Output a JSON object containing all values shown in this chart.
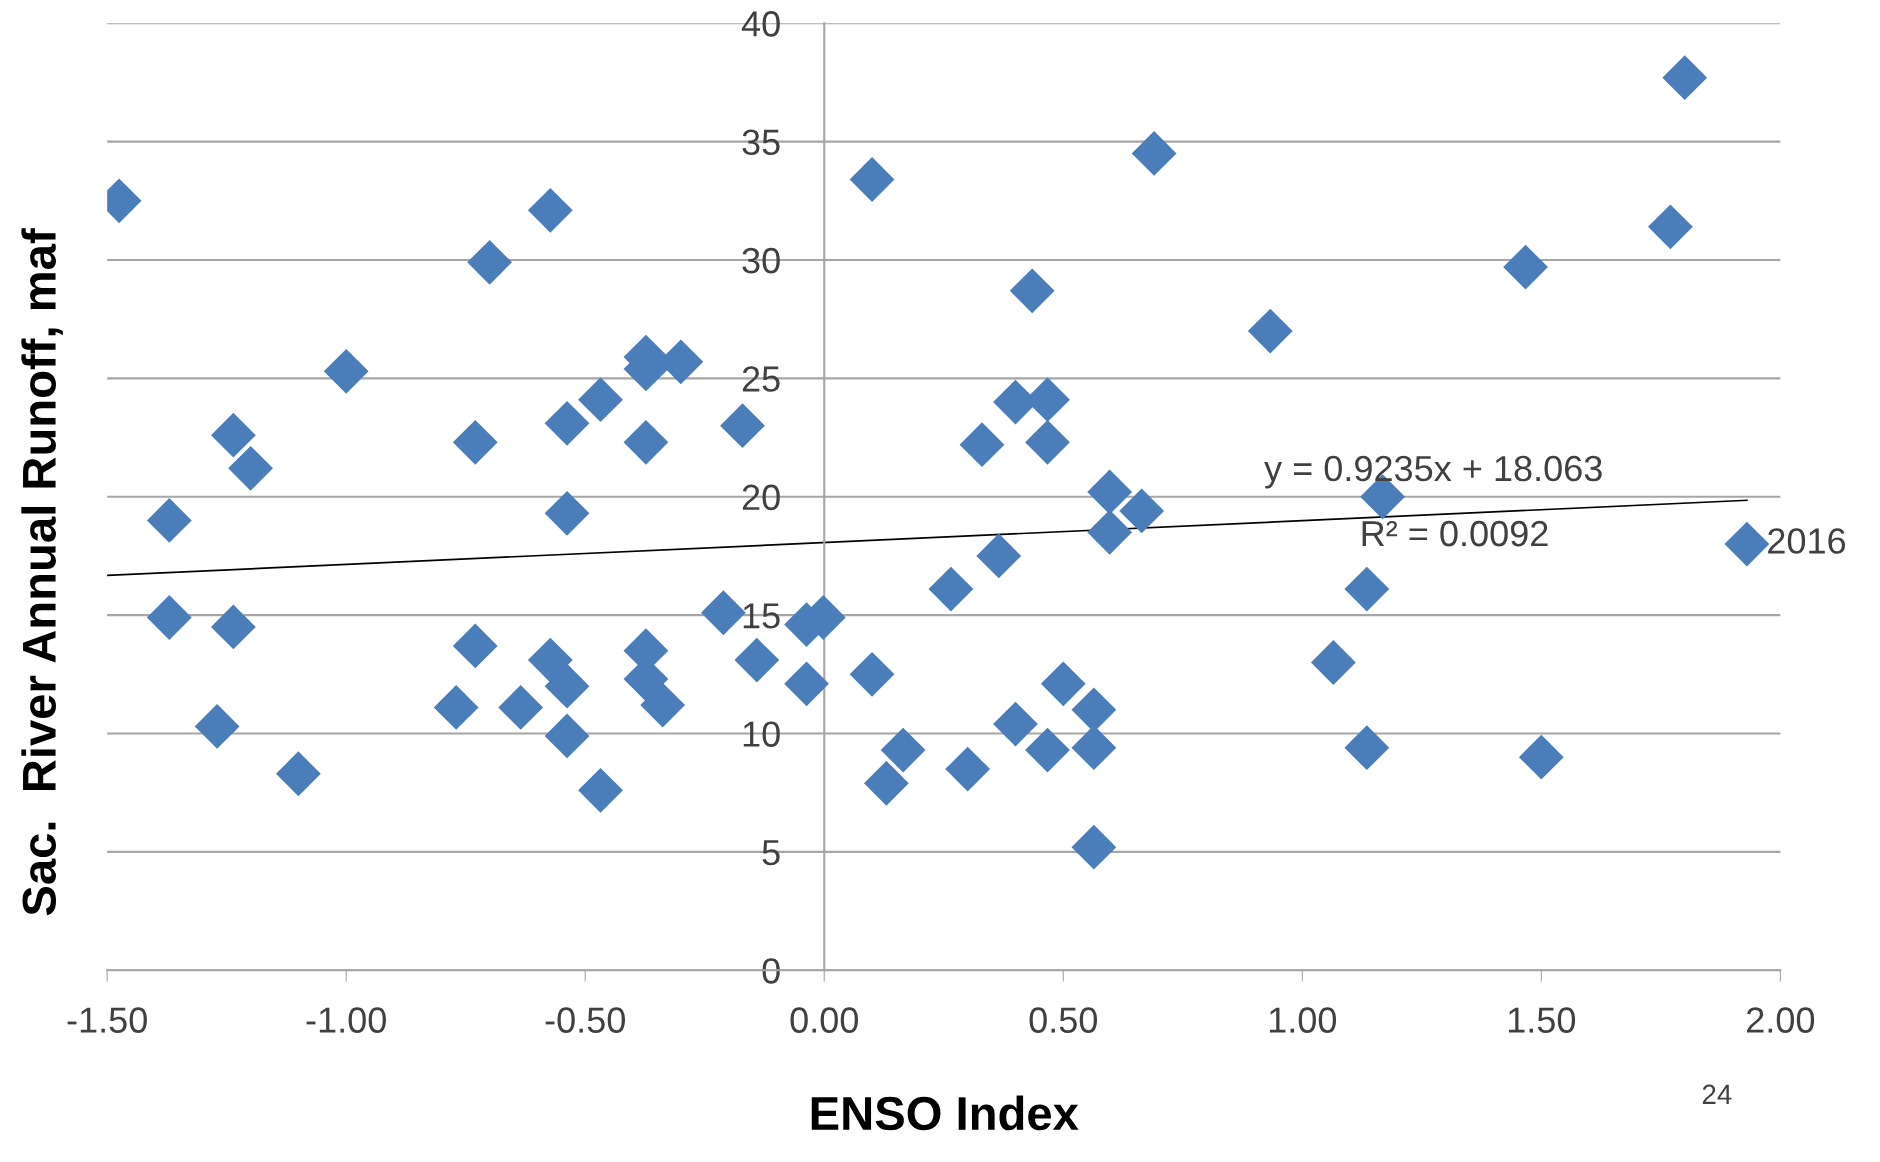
{
  "chart_data": {
    "type": "scatter",
    "xlabel": "ENSO Index",
    "ylabel": "Sac.  River Annual Runoff, maf",
    "xlim": [
      -1.5,
      2.0
    ],
    "ylim": [
      0,
      40
    ],
    "xticks": [
      {
        "value": -1.5,
        "label": "-1.50"
      },
      {
        "value": -1.0,
        "label": "-1.00"
      },
      {
        "value": -0.5,
        "label": "-0.50"
      },
      {
        "value": 0,
        "label": "0.00"
      },
      {
        "value": 0.5,
        "label": "0.50"
      },
      {
        "value": 1.0,
        "label": "1.00"
      },
      {
        "value": 1.5,
        "label": "1.50"
      },
      {
        "value": 2.0,
        "label": "2.00"
      }
    ],
    "yticks": [
      0,
      5,
      10,
      15,
      20,
      25,
      30,
      35,
      40
    ],
    "grid": "y",
    "marker": "diamond",
    "series": [
      {
        "type": "scatter",
        "color": "#4a7ebb",
        "x": [
          -1.475,
          -1.37,
          -1.37,
          -1.27,
          -1.236,
          -1.2,
          -1.236,
          -1.1,
          -1.0,
          -0.77,
          -0.73,
          -0.73,
          -0.7,
          -0.635,
          -0.573,
          -0.573,
          -0.538,
          -0.538,
          -0.538,
          -0.538,
          -0.468,
          -0.468,
          -0.373,
          -0.373,
          -0.3,
          -0.373,
          -0.373,
          -0.373,
          -0.338,
          -0.211,
          -0.171,
          -0.141,
          -0.037,
          -0.037,
          -0.002,
          0.1,
          0.1,
          0.13,
          0.165,
          0.265,
          0.3,
          0.33,
          0.365,
          0.4,
          0.4,
          0.435,
          0.467,
          0.467,
          0.467,
          0.5,
          0.564,
          0.564,
          0.564,
          0.597,
          0.597,
          0.664,
          0.69,
          0.933,
          1.065,
          1.135,
          1.135,
          1.168,
          1.467,
          1.5,
          1.77,
          1.8,
          1.93
        ],
        "values": [
          32.5,
          19.0,
          14.9,
          10.3,
          22.6,
          21.2,
          14.5,
          8.3,
          25.3,
          11.1,
          22.3,
          13.7,
          29.9,
          11.1,
          32.1,
          13.1,
          23.1,
          19.3,
          12.0,
          9.9,
          24.1,
          7.6,
          25.9,
          25.4,
          25.7,
          22.3,
          13.5,
          12.3,
          11.2,
          15.1,
          23.0,
          13.1,
          12.1,
          14.6,
          14.9,
          33.4,
          12.5,
          7.9,
          9.3,
          16.1,
          8.5,
          22.2,
          17.5,
          24.0,
          10.4,
          28.7,
          24.1,
          22.3,
          9.3,
          12.1,
          11.0,
          9.4,
          5.2,
          20.2,
          18.5,
          19.4,
          34.5,
          27.0,
          13.0,
          16.1,
          9.4,
          20.0,
          29.7,
          9.0,
          31.4,
          37.7,
          18.0
        ]
      },
      {
        "type": "line",
        "color": "#000000",
        "marker": "none",
        "x": [
          -1.5,
          1.93
        ],
        "values": [
          16.68,
          19.85
        ]
      }
    ],
    "annotations": [
      {
        "text": "2016",
        "x": 1.93,
        "y": 18.0
      },
      "y = 0.9235x + 18.063",
      "R² = 0.0092",
      "24"
    ]
  }
}
